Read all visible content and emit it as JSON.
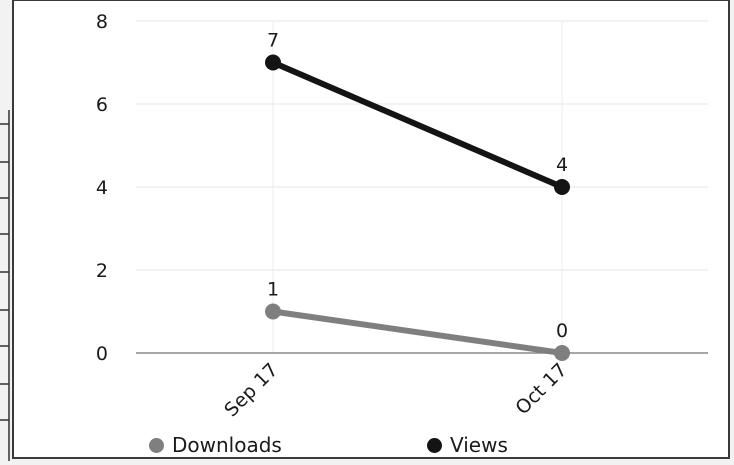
{
  "chart_data": {
    "type": "line",
    "categories": [
      "Sep 17",
      "Oct 17"
    ],
    "series": [
      {
        "name": "Downloads",
        "values": [
          1,
          0
        ],
        "color": "#7f7f7f"
      },
      {
        "name": "Views",
        "values": [
          7,
          4
        ],
        "color": "#141414"
      }
    ],
    "ylim": [
      0,
      8
    ],
    "yticks": [
      "0",
      "2",
      "4",
      "6",
      "8"
    ],
    "grid": true,
    "legend_position": "bottom"
  }
}
